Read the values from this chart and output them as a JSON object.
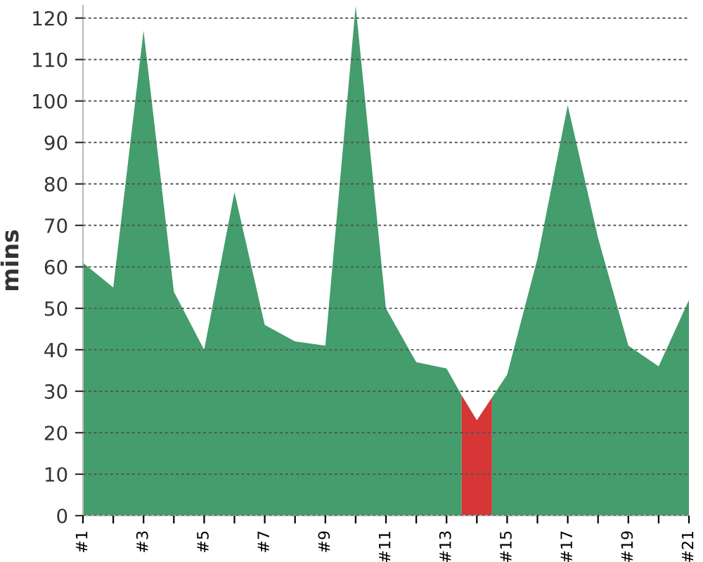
{
  "chart_data": {
    "type": "area",
    "ylabel": "mins",
    "series": [
      {
        "color": "#449d6c",
        "x": [
          1,
          2,
          3,
          4,
          5,
          6,
          7,
          8,
          9,
          10,
          11,
          12,
          13,
          13.5
        ],
        "values": [
          61,
          55,
          117,
          54,
          40,
          78,
          46,
          42,
          41,
          123,
          50,
          37,
          35.5,
          29
        ]
      },
      {
        "color": "#d63636",
        "x": [
          13.5,
          14,
          14.5
        ],
        "values": [
          29,
          23,
          28.5
        ]
      },
      {
        "color": "#449d6c",
        "x": [
          14.5,
          15,
          16,
          17,
          18,
          19,
          20,
          21
        ],
        "values": [
          28.5,
          34,
          62,
          99,
          67,
          41,
          36,
          52
        ]
      }
    ],
    "xlim": [
      1,
      21
    ],
    "xticks": [
      {
        "value": 1,
        "label": "#1"
      },
      {
        "value": 2,
        "label": null
      },
      {
        "value": 3,
        "label": "#3"
      },
      {
        "value": 4,
        "label": null
      },
      {
        "value": 5,
        "label": "#5"
      },
      {
        "value": 6,
        "label": null
      },
      {
        "value": 7,
        "label": "#7"
      },
      {
        "value": 8,
        "label": null
      },
      {
        "value": 9,
        "label": "#9"
      },
      {
        "value": 10,
        "label": null
      },
      {
        "value": 11,
        "label": "#11"
      },
      {
        "value": 12,
        "label": null
      },
      {
        "value": 13,
        "label": "#13"
      },
      {
        "value": 14,
        "label": null
      },
      {
        "value": 15,
        "label": "#15"
      },
      {
        "value": 16,
        "label": null
      },
      {
        "value": 17,
        "label": "#17"
      },
      {
        "value": 18,
        "label": null
      },
      {
        "value": 19,
        "label": "#19"
      },
      {
        "value": 20,
        "label": null
      },
      {
        "value": 21,
        "label": "#21"
      }
    ],
    "ylim": [
      0,
      123
    ],
    "yticks": [
      0,
      10,
      20,
      30,
      40,
      50,
      60,
      70,
      80,
      90,
      100,
      110,
      120
    ],
    "grid": "y"
  }
}
